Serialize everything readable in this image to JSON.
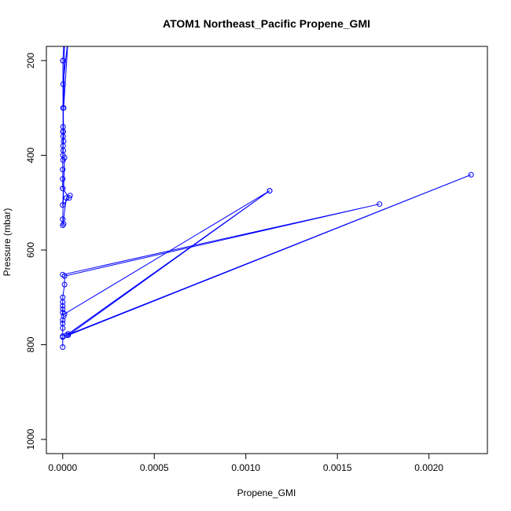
{
  "chart_data": {
    "type": "line",
    "title": "ATOM1 Northeast_Pacific Propene_GMI",
    "xlabel": "Propene_GMI",
    "ylabel": "Pressure (mbar)",
    "xlim": [
      -8.92e-05,
      0.0023192
    ],
    "ylim": [
      1030,
      170
    ],
    "y_reversed": true,
    "x_ticks": [
      0.0,
      0.0005,
      0.001,
      0.0015,
      0.002
    ],
    "x_tick_labels": [
      "0.0000",
      "0.0005",
      "0.0010",
      "0.0015",
      "0.0020"
    ],
    "y_ticks": [
      200,
      400,
      600,
      800,
      1000
    ],
    "y_tick_labels": [
      "200",
      "400",
      "600",
      "800",
      "1000"
    ],
    "grid": false,
    "color": "#0000ff",
    "series": [
      {
        "x": [
          8e-06,
          1e-06,
          2e-06,
          3e-05,
          5e-06,
          1e-05,
          2e-06,
          3e-06,
          2e-06,
          1e-06,
          5e-06,
          2e-06,
          3e-06,
          1e-06,
          2e-06,
          1e-06,
          0.0,
          2e-06,
          0.0,
          0.0
        ],
        "y": [
          150,
          200,
          250,
          150,
          300,
          150,
          340,
          350,
          360,
          200,
          370,
          380,
          390,
          400,
          410,
          350,
          430,
          300,
          450,
          470
        ]
      },
      {
        "x": [
          0.0,
          3.5e-05,
          0.0,
          1e-05,
          0.0,
          5e-06,
          0.0,
          2e-05,
          4e-05
        ],
        "y": [
          470,
          490,
          505,
          405,
          535,
          545,
          548,
          490,
          485
        ]
      },
      {
        "x": [
          0.0,
          0.00173,
          1e-05,
          1e-05,
          0.0,
          0.0,
          0.0,
          0.0,
          0.0,
          5e-06,
          0.0,
          0.0,
          0.0,
          0.0,
          0.0,
          0.0
        ],
        "y": [
          652,
          503,
          655,
          673,
          700,
          710,
          718,
          725,
          732,
          740,
          748,
          755,
          765,
          782,
          784,
          805
        ]
      },
      {
        "x": [
          1e-05,
          0.00113,
          2e-05,
          0.00223,
          3e-05,
          0.00113,
          3e-05
        ],
        "y": [
          735,
          475,
          780,
          441,
          780,
          475,
          777
        ]
      }
    ]
  }
}
